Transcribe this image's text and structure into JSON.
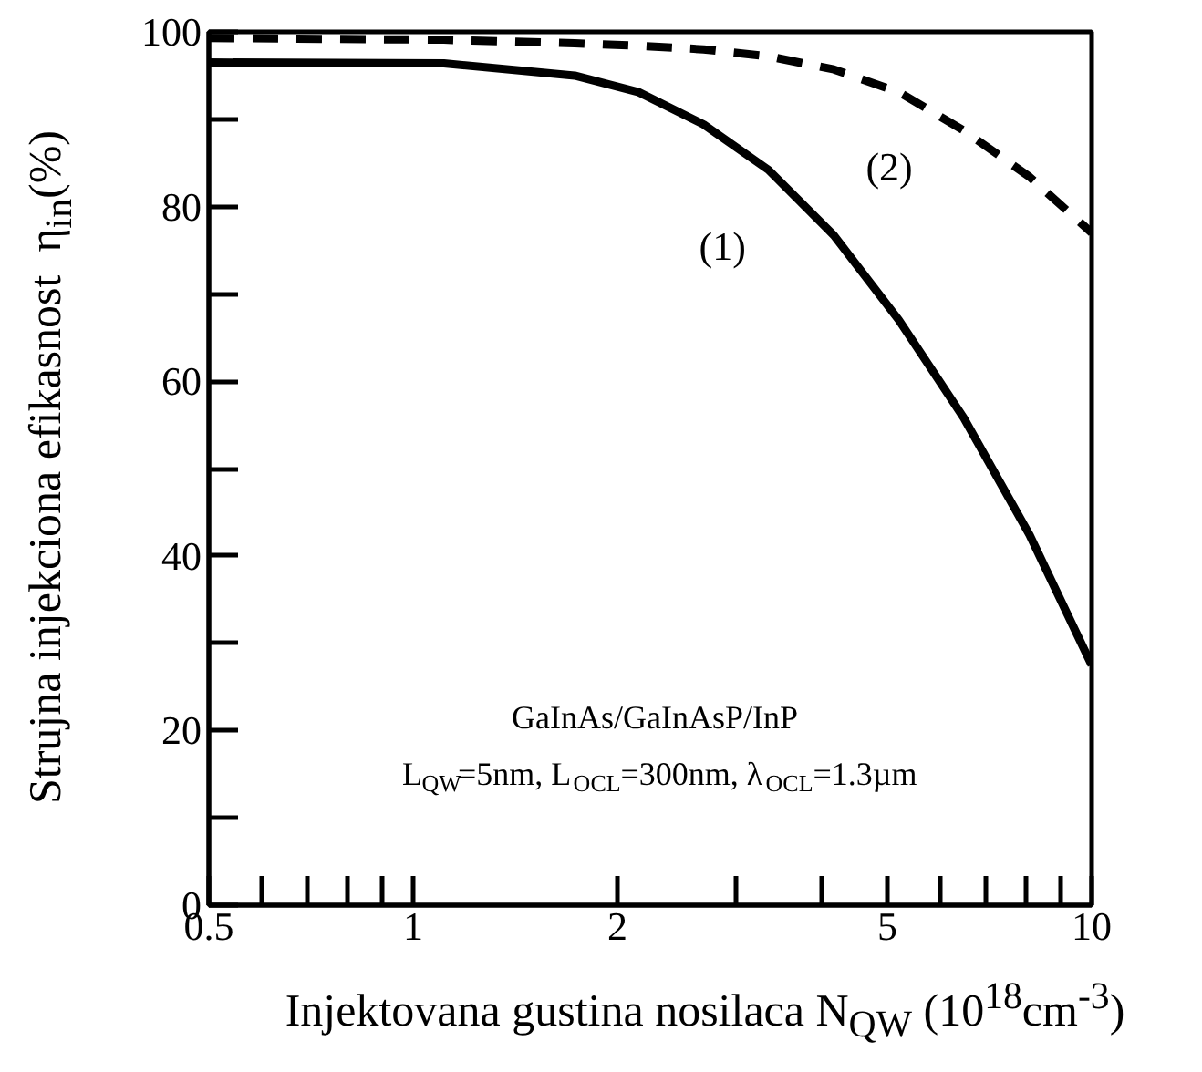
{
  "chart_data": {
    "type": "line",
    "xlabel": "Injektovana gustina nosilaca N$_{QW}$ (10$^{18}$cm$^{-3}$)",
    "ylabel": "Strujna injekciona efikasnost  η$_{in}$(%)",
    "x": [
      0.5,
      1.11,
      1.73,
      2.15,
      2.68,
      3.34,
      4.17,
      5.2,
      6.48,
      8.1,
      10
    ],
    "series": [
      {
        "color": "#000000",
        "line_style": "solid",
        "values": [
          96.5,
          96.4,
          95,
          93.1,
          89.4,
          84.2,
          76.7,
          67,
          55.8,
          42.4,
          27.5
        ]
      },
      {
        "color": "#000000",
        "line_style": "dashed",
        "values": [
          99.3,
          99.1,
          98.7,
          98.4,
          98,
          97.2,
          95.7,
          93.1,
          88.7,
          83.4,
          77
        ]
      }
    ],
    "log": "x",
    "xlim": [
      0.5,
      10
    ],
    "ylim": [
      0,
      100
    ],
    "xticks": [
      0.5,
      {
        "value": 0.6,
        "label": null
      },
      {
        "value": 0.7,
        "label": null
      },
      {
        "value": 0.8,
        "label": null
      },
      {
        "value": 0.9,
        "label": null
      },
      1,
      2,
      {
        "value": 3,
        "label": null
      },
      {
        "value": 4,
        "label": null
      },
      5,
      {
        "value": 6,
        "label": null
      },
      {
        "value": 7,
        "label": null
      },
      {
        "value": 8,
        "label": null
      },
      {
        "value": 9,
        "label": null
      },
      10
    ],
    "yticks": [
      0,
      {
        "value": 10,
        "label": null
      },
      20,
      {
        "value": 30,
        "label": null
      },
      40,
      {
        "value": 50,
        "label": null
      },
      60,
      {
        "value": 70,
        "label": null
      },
      80,
      {
        "value": 90,
        "label": null
      },
      100
    ],
    "annotations": [
      "(1)",
      "(2)",
      "GaInAs/GaInAsP/InP",
      "L$_{QW}$=5nm, L$_{OCL}$=300nm, λ$_{OCL}$=1.3µm"
    ]
  }
}
